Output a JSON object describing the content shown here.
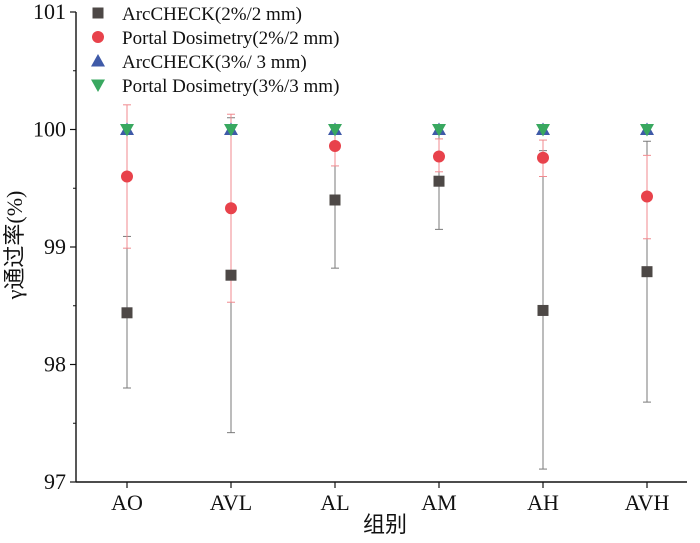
{
  "chart_data": {
    "type": "scatter",
    "title": "",
    "xlabel": "组别",
    "ylabel": "γ通过率(%)",
    "ylim": [
      97,
      101
    ],
    "yticks": [
      97,
      98,
      99,
      100,
      101
    ],
    "categories": [
      "AO",
      "AVL",
      "AL",
      "AM",
      "AH",
      "AVH"
    ],
    "grid": false,
    "legend_position": "top-left",
    "series": [
      {
        "name": "ArcCHECK(2%/2 mm)",
        "marker": "square",
        "color": "#4d4846",
        "error_color": "#7a7a7a",
        "values": [
          98.44,
          98.76,
          99.4,
          99.56,
          98.46,
          98.79
        ],
        "err_low": [
          97.8,
          97.42,
          98.82,
          99.15,
          97.11,
          97.68
        ],
        "err_high": [
          99.09,
          100.1,
          99.98,
          99.97,
          99.82,
          99.9
        ]
      },
      {
        "name": "Portal Dosimetry(2%/2 mm)",
        "marker": "circle",
        "color": "#e8424b",
        "error_color": "#f08a8f",
        "values": [
          99.6,
          99.33,
          99.86,
          99.77,
          99.76,
          99.43
        ],
        "err_low": [
          98.99,
          98.53,
          99.69,
          99.64,
          99.6,
          99.07
        ],
        "err_high": [
          100.21,
          100.13,
          100.02,
          99.92,
          99.91,
          99.78
        ]
      },
      {
        "name": "ArcCHECK(3%/ 3 mm)",
        "marker": "triangle-up",
        "color": "#3f5aa8",
        "values": [
          100,
          100,
          100,
          100,
          100,
          100
        ]
      },
      {
        "name": "Portal Dosimetry(3%/3 mm)",
        "marker": "triangle-down",
        "color": "#39a860",
        "values": [
          100,
          100,
          100,
          100,
          100,
          100
        ]
      }
    ]
  }
}
